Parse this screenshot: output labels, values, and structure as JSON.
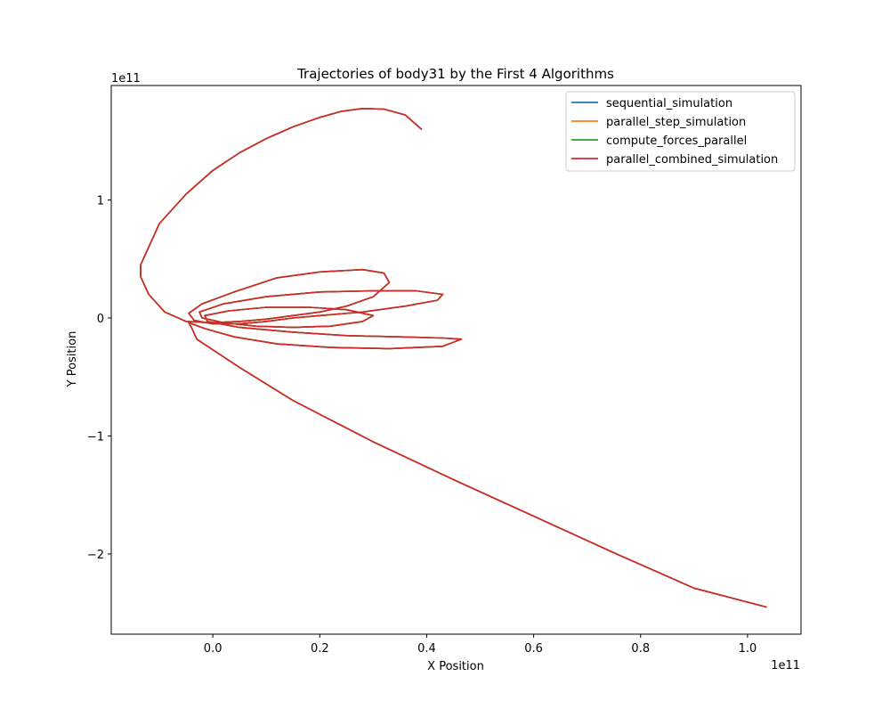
{
  "chart_data": {
    "type": "line",
    "title": "Trajectories of body31 by the First 4 Algorithms",
    "xlabel": "X Position",
    "ylabel": "Y Position",
    "x_offset_label": "1e11",
    "y_offset_label": "1e11",
    "xlim": [
      -0.19,
      1.1
    ],
    "ylim": [
      -2.68,
      1.97
    ],
    "xticks": [
      0.0,
      0.2,
      0.4,
      0.6,
      0.8,
      1.0
    ],
    "xtick_labels": [
      "0.0",
      "0.2",
      "0.4",
      "0.6",
      "0.8",
      "1.0"
    ],
    "yticks": [
      -2,
      -1,
      0,
      1
    ],
    "ytick_labels": [
      "−2",
      "−1",
      "0",
      "1"
    ],
    "grid": false,
    "legend_position": "top-right",
    "series": [
      {
        "name": "sequential_simulation",
        "color": "#1f77b4"
      },
      {
        "name": "parallel_step_simulation",
        "color": "#ff7f0e"
      },
      {
        "name": "compute_forces_parallel",
        "color": "#2ca02c"
      },
      {
        "name": "parallel_combined_simulation",
        "color": "#d62728"
      }
    ],
    "trajectory": {
      "x": [
        0.39,
        0.36,
        0.32,
        0.28,
        0.24,
        0.2,
        0.15,
        0.1,
        0.05,
        0.0,
        -0.05,
        -0.1,
        -0.135,
        -0.135,
        -0.12,
        -0.09,
        -0.05,
        0.0,
        0.05,
        0.1,
        0.15,
        0.2,
        0.25,
        0.3,
        0.33,
        0.32,
        0.28,
        0.2,
        0.12,
        0.04,
        -0.02,
        -0.045,
        -0.035,
        0.0,
        0.05,
        0.1,
        0.15,
        0.2,
        0.28,
        0.36,
        0.42,
        0.43,
        0.38,
        0.3,
        0.2,
        0.1,
        0.02,
        -0.025,
        -0.02,
        0.02,
        0.08,
        0.15,
        0.22,
        0.28,
        0.3,
        0.25,
        0.18,
        0.1,
        0.03,
        -0.015,
        -0.01,
        0.05,
        0.15,
        0.25,
        0.35,
        0.43,
        0.465,
        0.43,
        0.33,
        0.22,
        0.12,
        0.04,
        -0.015,
        -0.045,
        -0.04,
        -0.03,
        0.05,
        0.15,
        0.3,
        0.45,
        0.6,
        0.75,
        0.9,
        1.035
      ],
      "y": [
        1.6,
        1.72,
        1.77,
        1.775,
        1.75,
        1.7,
        1.62,
        1.52,
        1.4,
        1.25,
        1.05,
        0.8,
        0.45,
        0.35,
        0.2,
        0.05,
        -0.03,
        -0.04,
        -0.03,
        -0.01,
        0.02,
        0.05,
        0.1,
        0.18,
        0.3,
        0.38,
        0.41,
        0.39,
        0.34,
        0.22,
        0.12,
        0.04,
        -0.02,
        -0.05,
        -0.05,
        -0.03,
        0.0,
        0.02,
        0.05,
        0.1,
        0.15,
        0.2,
        0.23,
        0.23,
        0.22,
        0.18,
        0.12,
        0.05,
        0.0,
        -0.04,
        -0.07,
        -0.08,
        -0.07,
        -0.03,
        0.02,
        0.07,
        0.09,
        0.09,
        0.06,
        0.02,
        -0.03,
        -0.08,
        -0.12,
        -0.15,
        -0.16,
        -0.17,
        -0.18,
        -0.24,
        -0.26,
        -0.25,
        -0.22,
        -0.16,
        -0.09,
        -0.04,
        -0.08,
        -0.18,
        -0.42,
        -0.7,
        -1.05,
        -1.37,
        -1.68,
        -1.99,
        -2.29,
        -2.45
      ]
    }
  }
}
